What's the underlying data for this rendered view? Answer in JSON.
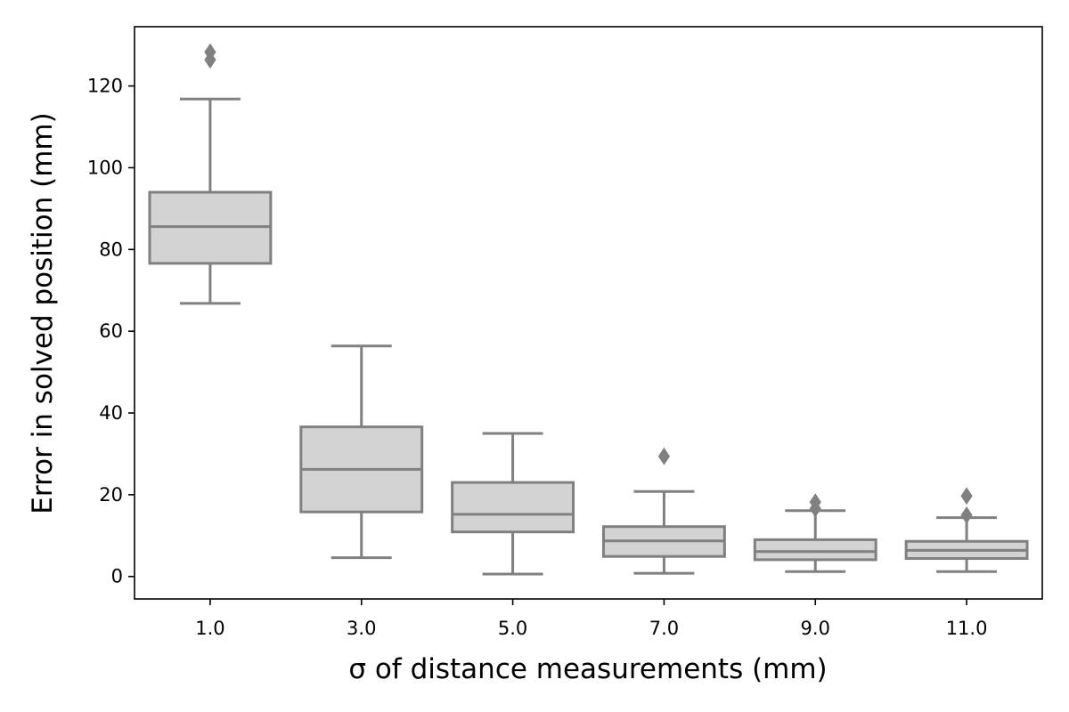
{
  "chart_data": {
    "type": "box",
    "title": "",
    "xlabel": "σ of distance measurements (mm)",
    "ylabel": "Error in solved position (mm)",
    "ylim": [
      -5.5,
      134.5
    ],
    "yticks": [
      "0",
      "20",
      "40",
      "60",
      "80",
      "100",
      "120"
    ],
    "categories": [
      "1.0",
      "3.0",
      "5.0",
      "7.0",
      "9.0",
      "11.0"
    ],
    "grid": false,
    "colors": {
      "box_fill": "#d3d3d3",
      "line": "#808080",
      "frame": "#000000"
    },
    "boxes": [
      {
        "category": "1.0",
        "whisker_low": 66.8,
        "q1": 76.6,
        "median": 85.6,
        "q3": 94.0,
        "whisker_high": 116.8,
        "outliers": [
          126.4,
          128.3
        ]
      },
      {
        "category": "3.0",
        "whisker_low": 4.6,
        "q1": 15.8,
        "median": 26.2,
        "q3": 36.6,
        "whisker_high": 56.4,
        "outliers": []
      },
      {
        "category": "5.0",
        "whisker_low": 0.6,
        "q1": 10.9,
        "median": 15.2,
        "q3": 23.0,
        "whisker_high": 35.0,
        "outliers": []
      },
      {
        "category": "7.0",
        "whisker_low": 0.8,
        "q1": 4.9,
        "median": 8.7,
        "q3": 12.2,
        "whisker_high": 20.8,
        "outliers": [
          29.4
        ]
      },
      {
        "category": "9.0",
        "whisker_low": 1.2,
        "q1": 4.1,
        "median": 6.1,
        "q3": 9.0,
        "whisker_high": 16.1,
        "outliers": [
          16.6,
          18.2
        ]
      },
      {
        "category": "11.0",
        "whisker_low": 1.2,
        "q1": 4.4,
        "median": 6.4,
        "q3": 8.6,
        "whisker_high": 14.4,
        "outliers": [
          15.0,
          19.7
        ]
      }
    ]
  }
}
